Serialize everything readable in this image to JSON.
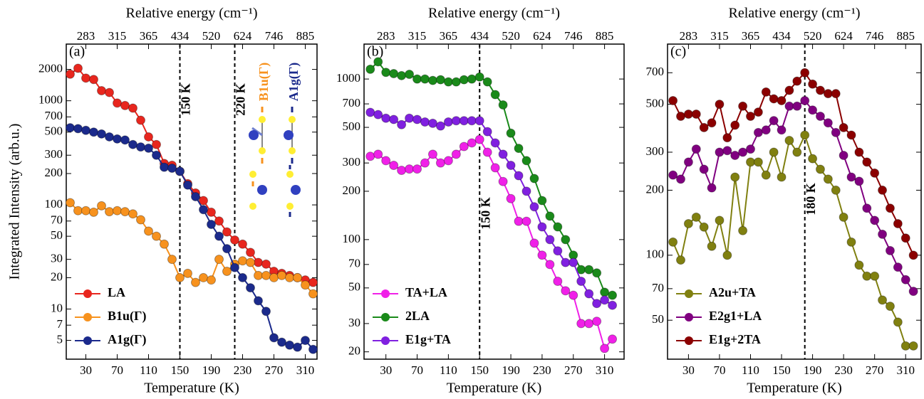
{
  "chart_data": [
    {
      "type": "line",
      "panel_label": "(a)",
      "yscale": "log",
      "legend": "lower left",
      "x_label": "Temperature (K)",
      "x2_label": "Relative energy (cm⁻¹)",
      "y_label": "Integrated Intensity (arb.u.)",
      "x": [
        10,
        20,
        30,
        40,
        50,
        60,
        70,
        80,
        90,
        100,
        110,
        120,
        130,
        140,
        150,
        160,
        170,
        180,
        190,
        200,
        210,
        220,
        230,
        240,
        250,
        260,
        270,
        280,
        290,
        300,
        310,
        320
      ],
      "series": [
        {
          "name": "LA",
          "color": "#e8261e",
          "values": [
            1800,
            2050,
            1650,
            1600,
            1250,
            1200,
            950,
            900,
            850,
            650,
            450,
            380,
            250,
            240,
            210,
            160,
            130,
            110,
            85,
            70,
            55,
            46,
            42,
            35,
            28,
            27,
            23,
            22,
            21,
            20,
            19,
            18
          ]
        },
        {
          "name": "B1u(Γ)",
          "color": "#f7921e",
          "values": [
            105,
            88,
            88,
            85,
            98,
            86,
            88,
            86,
            82,
            72,
            56,
            50,
            42,
            30,
            20,
            22,
            18,
            20,
            19,
            30,
            23,
            27,
            29,
            28,
            21,
            21,
            20,
            21,
            20,
            20,
            17,
            14
          ]
        },
        {
          "name": "A1g(Γ)",
          "color": "#1b2a8c",
          "values": [
            550,
            540,
            520,
            500,
            480,
            450,
            430,
            420,
            380,
            360,
            350,
            300,
            230,
            225,
            210,
            155,
            120,
            90,
            65,
            50,
            38,
            25,
            20,
            16,
            12,
            9.5,
            5.3,
            4.8,
            4.5,
            4.3,
            5,
            4.1
          ]
        }
      ],
      "xlim": [
        5,
        325
      ],
      "ylim": [
        3.3,
        3500
      ],
      "xticks": [
        30,
        70,
        110,
        150,
        190,
        230,
        270,
        310
      ],
      "x2ticks": [
        {
          "value": 30,
          "label": "283"
        },
        {
          "value": 70,
          "label": "315"
        },
        {
          "value": 110,
          "label": "365"
        },
        {
          "value": 150,
          "label": "434"
        },
        {
          "value": 190,
          "label": "520"
        },
        {
          "value": 230,
          "label": "624"
        },
        {
          "value": 270,
          "label": "746"
        },
        {
          "value": 310,
          "label": "885"
        }
      ],
      "yticks": [
        5,
        7,
        10,
        20,
        30,
        50,
        70,
        100,
        200,
        300,
        500,
        700,
        1000,
        2000
      ],
      "vlines": [
        {
          "value": 150,
          "label": "150 K"
        },
        {
          "value": 220,
          "label": "220 K"
        }
      ],
      "inset_labels": [
        "B1u(Γ)",
        "A1g(Γ)"
      ]
    },
    {
      "type": "line",
      "panel_label": "(b)",
      "yscale": "log",
      "legend": "lower left",
      "x_label": "Temperature (K)",
      "x2_label": "Relative energy (cm⁻¹)",
      "x": [
        10,
        20,
        30,
        40,
        50,
        60,
        70,
        80,
        90,
        100,
        110,
        120,
        130,
        140,
        150,
        160,
        170,
        180,
        190,
        200,
        210,
        220,
        230,
        240,
        250,
        260,
        270,
        280,
        290,
        300,
        310,
        320
      ],
      "series": [
        {
          "name": "TA+LA",
          "color": "#f020e8",
          "values": [
            330,
            340,
            310,
            290,
            270,
            275,
            275,
            300,
            340,
            300,
            310,
            340,
            380,
            400,
            420,
            350,
            280,
            230,
            180,
            130,
            130,
            95,
            80,
            70,
            55,
            48,
            45,
            30,
            30,
            31,
            21,
            24
          ]
        },
        {
          "name": "2LA",
          "color": "#1a8a1a",
          "values": [
            1150,
            1280,
            1100,
            1080,
            1050,
            1070,
            1000,
            1000,
            980,
            990,
            960,
            960,
            990,
            1000,
            1030,
            960,
            800,
            690,
            460,
            370,
            310,
            240,
            175,
            140,
            120,
            100,
            80,
            65,
            65,
            62,
            47,
            45
          ]
        },
        {
          "name": "E1g+TA",
          "color": "#8020e0",
          "values": [
            620,
            600,
            570,
            560,
            520,
            570,
            560,
            540,
            530,
            510,
            540,
            550,
            550,
            550,
            550,
            470,
            400,
            340,
            290,
            250,
            200,
            160,
            120,
            100,
            85,
            72,
            72,
            55,
            46,
            40,
            42,
            39
          ]
        }
      ],
      "xlim": [
        2,
        335
      ],
      "ylim": [
        18,
        1650
      ],
      "xticks": [
        30,
        70,
        110,
        150,
        190,
        230,
        270,
        310
      ],
      "x2ticks": [
        {
          "value": 30,
          "label": "283"
        },
        {
          "value": 70,
          "label": "315"
        },
        {
          "value": 110,
          "label": "365"
        },
        {
          "value": 150,
          "label": "434"
        },
        {
          "value": 190,
          "label": "520"
        },
        {
          "value": 230,
          "label": "624"
        },
        {
          "value": 270,
          "label": "746"
        },
        {
          "value": 310,
          "label": "885"
        }
      ],
      "yticks": [
        20,
        30,
        50,
        70,
        100,
        200,
        300,
        500,
        700,
        1000
      ],
      "vlines": [
        {
          "value": 150,
          "label": "150 K"
        }
      ]
    },
    {
      "type": "line",
      "panel_label": "(c)",
      "yscale": "log",
      "legend": "lower left",
      "x_label": "Temperature (K)",
      "x2_label": "Relative energy (cm⁻¹)",
      "x": [
        10,
        20,
        30,
        40,
        50,
        60,
        70,
        80,
        90,
        100,
        110,
        120,
        130,
        140,
        150,
        160,
        170,
        180,
        190,
        200,
        210,
        220,
        230,
        240,
        250,
        260,
        270,
        280,
        290,
        300,
        310,
        320
      ],
      "series": [
        {
          "name": "A2u+TA",
          "color": "#808010",
          "values": [
            115,
            95,
            140,
            150,
            135,
            110,
            145,
            100,
            230,
            130,
            270,
            270,
            235,
            300,
            230,
            340,
            300,
            360,
            280,
            250,
            225,
            200,
            150,
            115,
            90,
            80,
            80,
            62,
            58,
            49,
            38,
            38
          ]
        },
        {
          "name": "E2g1+LA",
          "color": "#800080",
          "values": [
            235,
            225,
            270,
            310,
            250,
            205,
            300,
            305,
            290,
            300,
            310,
            370,
            380,
            420,
            380,
            490,
            490,
            520,
            470,
            440,
            410,
            370,
            290,
            230,
            220,
            165,
            145,
            125,
            105,
            88,
            77,
            68
          ]
        },
        {
          "name": "E1g+2TA",
          "color": "#8b0000",
          "values": [
            520,
            440,
            450,
            450,
            390,
            410,
            500,
            350,
            400,
            490,
            440,
            460,
            570,
            530,
            520,
            580,
            640,
            700,
            620,
            580,
            560,
            560,
            390,
            360,
            300,
            270,
            240,
            200,
            165,
            140,
            120,
            100
          ]
        }
      ],
      "xlim": [
        3,
        330
      ],
      "ylim": [
        33,
        950
      ],
      "xticks": [
        30,
        70,
        110,
        150,
        190,
        230,
        270,
        310
      ],
      "x2ticks": [
        {
          "value": 30,
          "label": "283"
        },
        {
          "value": 70,
          "label": "315"
        },
        {
          "value": 110,
          "label": "365"
        },
        {
          "value": 150,
          "label": "434"
        },
        {
          "value": 190,
          "label": "520"
        },
        {
          "value": 230,
          "label": "624"
        },
        {
          "value": 270,
          "label": "746"
        },
        {
          "value": 310,
          "label": "885"
        }
      ],
      "yticks": [
        50,
        70,
        100,
        200,
        300,
        500,
        700
      ],
      "vlines": [
        {
          "value": 180,
          "label": "180 K"
        }
      ]
    }
  ]
}
